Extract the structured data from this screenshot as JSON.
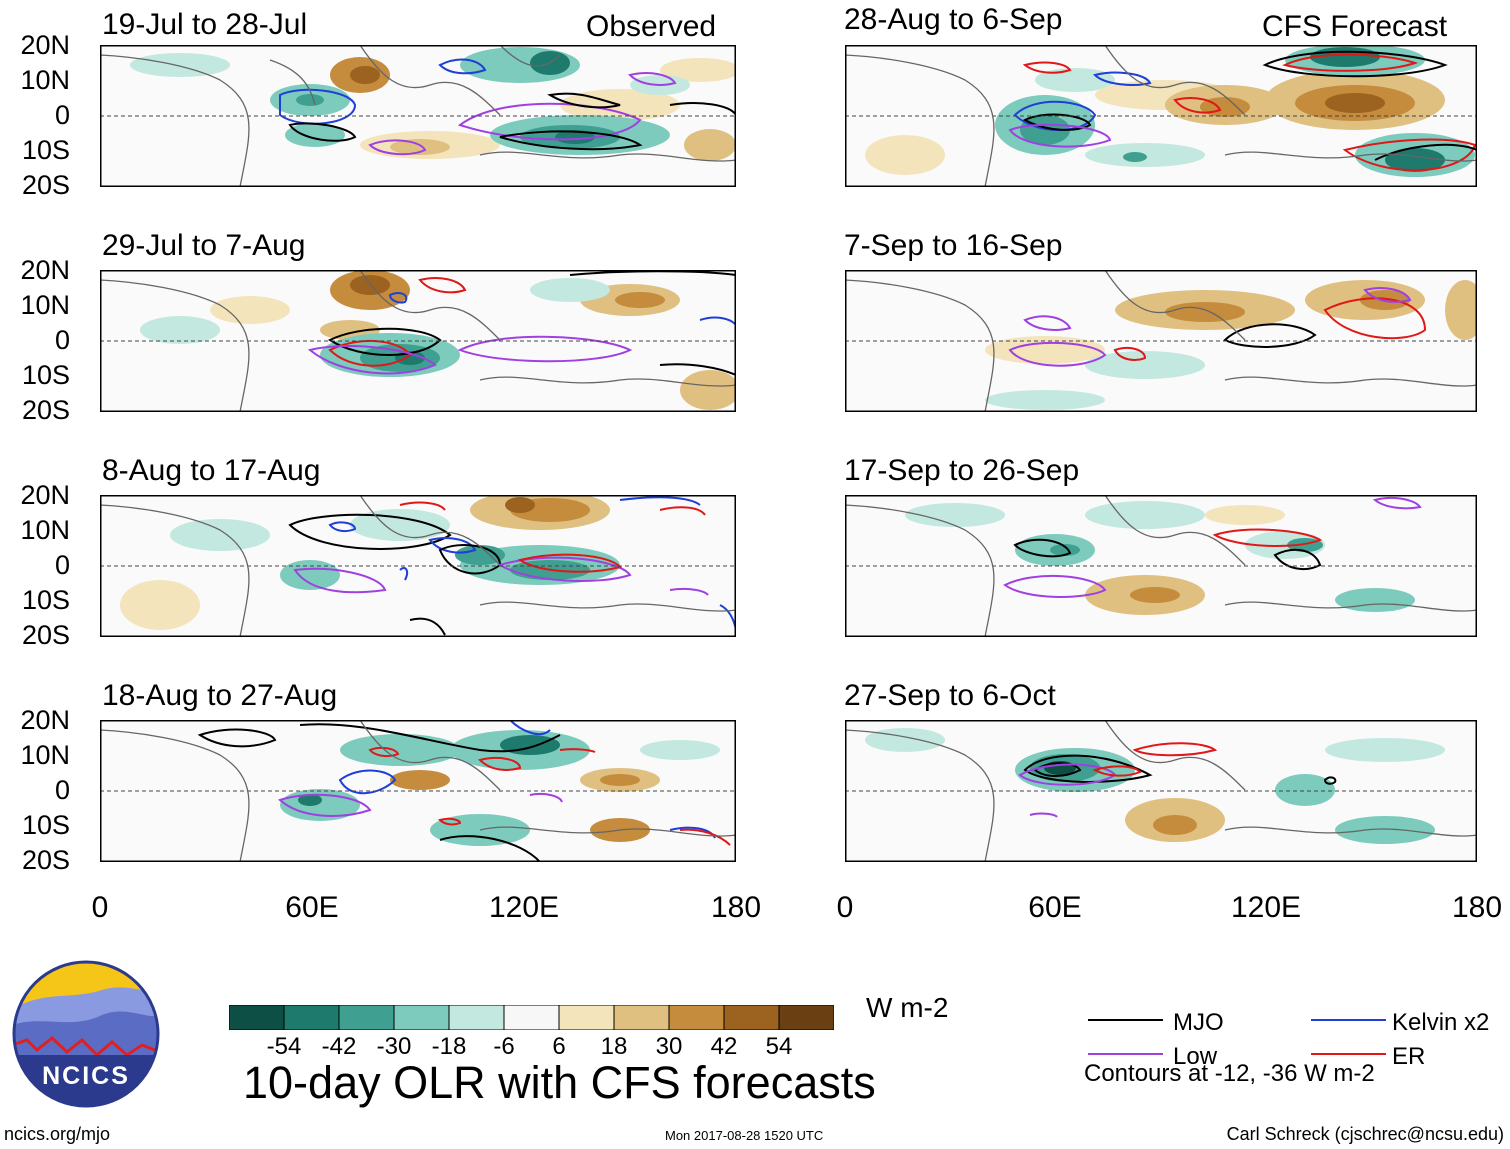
{
  "panels": {
    "observed": [
      {
        "title": "19-Jul to 28-Jul"
      },
      {
        "title": "29-Jul to 7-Aug"
      },
      {
        "title": "8-Aug to 17-Aug"
      },
      {
        "title": "18-Aug to 27-Aug"
      }
    ],
    "forecast": [
      {
        "title": "28-Aug to 6-Sep"
      },
      {
        "title": "7-Sep to 16-Sep"
      },
      {
        "title": "17-Sep to 26-Sep"
      },
      {
        "title": "27-Sep to 6-Oct"
      }
    ],
    "observed_label": "Observed",
    "forecast_label": "CFS Forecast"
  },
  "axes": {
    "lat_labels": [
      "20N",
      "10N",
      "0",
      "10S",
      "20S"
    ],
    "lon_labels": [
      "0",
      "60E",
      "120E",
      "180"
    ]
  },
  "colorbar": {
    "ticks": [
      "-54",
      "-42",
      "-30",
      "-18",
      "-6",
      "6",
      "18",
      "30",
      "42",
      "54"
    ],
    "colors": [
      "#0d4f45",
      "#1d7a6c",
      "#3f9f90",
      "#7ccbbd",
      "#c3e8df",
      "#f7f7f7",
      "#f4e4bc",
      "#dfc081",
      "#c48c3c",
      "#9b6220",
      "#6a3f12"
    ],
    "units": "W m-2"
  },
  "legend": {
    "items": [
      {
        "label": "MJO",
        "color": "#000000"
      },
      {
        "label": "Kelvin x2",
        "color": "#1f3fd6"
      },
      {
        "label": "Low",
        "color": "#a040e0"
      },
      {
        "label": "ER",
        "color": "#e01818"
      }
    ],
    "note": "Contours at -12, -36 W m-2"
  },
  "footer": {
    "title": "10-day OLR with CFS forecasts",
    "url": "ncics.org/mjo",
    "timestamp": "Mon 2017-08-28 1520 UTC",
    "credit": "Carl Schreck (cjschrec@ncsu.edu)",
    "logo_text": "NCICS"
  }
}
